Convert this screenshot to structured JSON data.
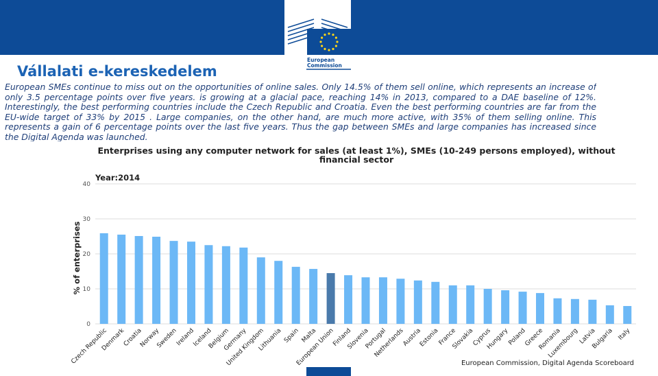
{
  "header": {
    "logo_line1": "European",
    "logo_line2": "Commission"
  },
  "title": "Vállalati e-kereskedelem",
  "text": "European SMEs continue to miss out on the opportunities of online sales. Only 14.5% of them sell online, which represents an increase of only 3.5 percentage points over five years. is growing at a glacial pace, reaching 14% in 2013, compared to a DAE baseline of 12%. Interestingly, the best performing countries include the Czech Republic and Croatia. Even the best performing countries are far from the EU-wide target of 33% by 2015 . Large companies, on the other hand, are much more active, with 35% of them selling online. This represents a gain of 6 percentage points over the last five years. Thus the gap between SMEs and large companies has increased since the Digital Agenda was launched.",
  "chart_data": {
    "type": "bar",
    "title": "Enterprises using any computer network for sales (at least 1%), SMEs (10-249 persons employed), without financial sector",
    "subtitle": "Year:2014",
    "y_label": "% of enterprises",
    "source": "European Commission, Digital Agenda Scoreboard",
    "categories": [
      "Czech Republic",
      "Denmark",
      "Croatia",
      "Norway",
      "Sweden",
      "Ireland",
      "Iceland",
      "Belgium",
      "Germany",
      "United Kingdom",
      "Lithuania",
      "Spain",
      "Malta",
      "European Union",
      "Finland",
      "Slovenia",
      "Portugal",
      "Netherlands",
      "Austria",
      "Estonia",
      "France",
      "Slovakia",
      "Cyprus",
      "Hungary",
      "Poland",
      "Greece",
      "Romania",
      "Luxembourg",
      "Latvia",
      "Bulgaria",
      "Italy"
    ],
    "values": [
      25.9,
      25.5,
      25.1,
      24.9,
      23.7,
      23.5,
      22.5,
      22.2,
      21.8,
      19.0,
      18.0,
      16.3,
      15.7,
      14.5,
      13.9,
      13.3,
      13.3,
      12.9,
      12.4,
      12.0,
      11.0,
      11.0,
      10.0,
      9.6,
      9.2,
      8.8,
      7.3,
      7.1,
      6.9,
      5.3,
      5.1
    ],
    "colors": [
      "#6cb8f6",
      "#6cb8f6",
      "#6cb8f6",
      "#6cb8f6",
      "#6cb8f6",
      "#6cb8f6",
      "#6cb8f6",
      "#6cb8f6",
      "#6cb8f6",
      "#6cb8f6",
      "#6cb8f6",
      "#6cb8f6",
      "#6cb8f6",
      "#4a7aab",
      "#6cb8f6",
      "#6cb8f6",
      "#6cb8f6",
      "#6cb8f6",
      "#6cb8f6",
      "#6cb8f6",
      "#6cb8f6",
      "#6cb8f6",
      "#6cb8f6",
      "#6cb8f6",
      "#6cb8f6",
      "#6cb8f6",
      "#6cb8f6",
      "#6cb8f6",
      "#6cb8f6",
      "#6cb8f6",
      "#6cb8f6"
    ],
    "ylim": [
      0,
      40
    ],
    "yticks": [
      0,
      10,
      20,
      30,
      40
    ],
    "grid": true
  }
}
